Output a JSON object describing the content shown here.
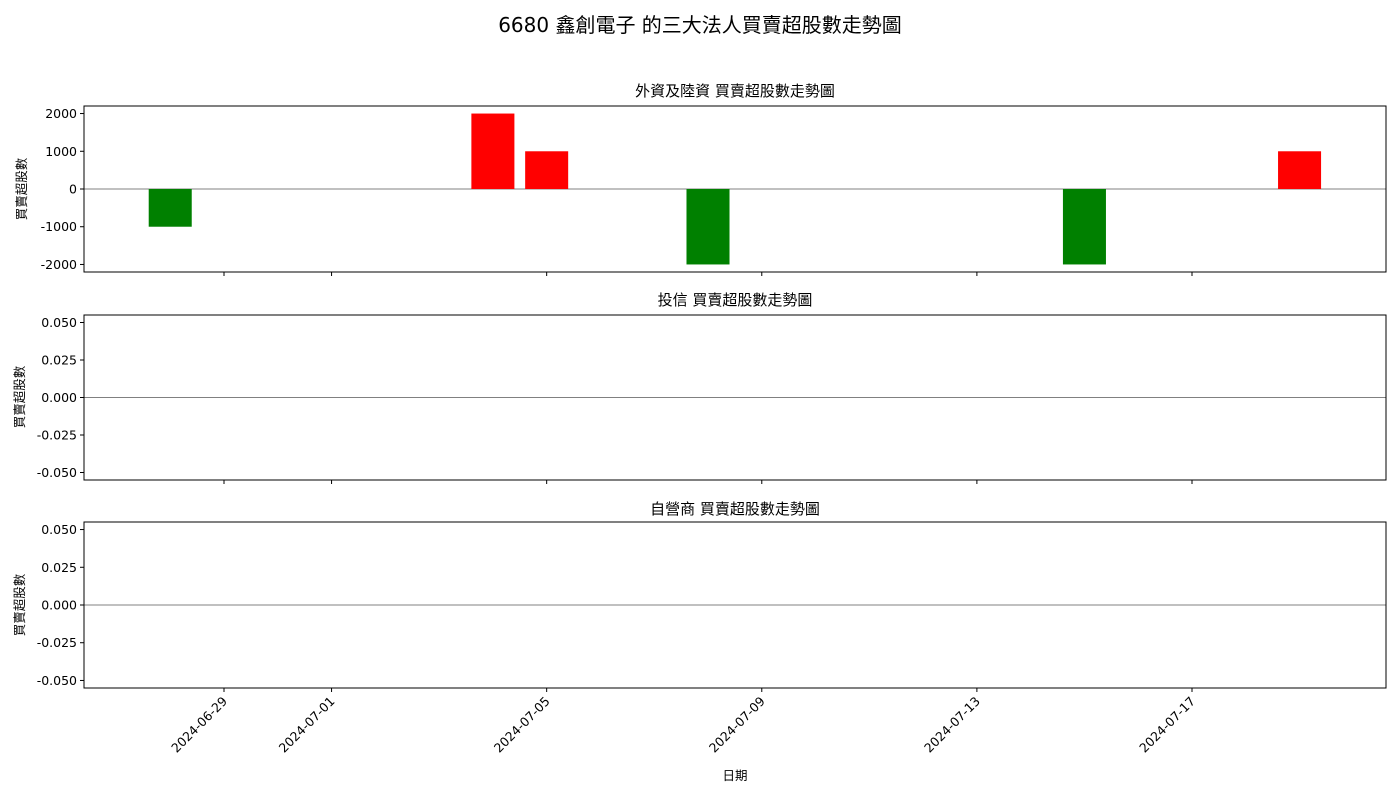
{
  "figure_title": "6680 鑫創電子 的三大法人買賣超股數走勢圖",
  "xlabel": "日期",
  "x_tick_labels": [
    "2024-06-29",
    "2024-07-01",
    "2024-07-05",
    "2024-07-09",
    "2024-07-13",
    "2024-07-17"
  ],
  "colors": {
    "positive": "#ff0000",
    "negative": "#008000",
    "zero_line": "#808080"
  },
  "chart_data": [
    {
      "type": "bar",
      "title": "外資及陸資 買賣超股數走勢圖",
      "ylabel": "買賣超股數",
      "x": [
        "2024-06-28",
        "2024-07-04",
        "2024-07-05",
        "2024-07-08",
        "2024-07-15",
        "2024-07-19"
      ],
      "values": [
        -1000,
        2000,
        1000,
        -2000,
        -2000,
        1000
      ],
      "ylim": [
        -2200,
        2200
      ],
      "y_ticks": [
        2000,
        1000,
        0,
        -1000,
        -2000
      ],
      "y_tick_labels": [
        "2000",
        "1000",
        "0",
        "-1000",
        "-2000"
      ]
    },
    {
      "type": "bar",
      "title": "投信 買賣超股數走勢圖",
      "ylabel": "買賣超股數",
      "x": [],
      "values": [],
      "ylim": [
        -0.055,
        0.055
      ],
      "y_ticks": [
        0.05,
        0.025,
        0,
        -0.025,
        -0.05
      ],
      "y_tick_labels": [
        "0.050",
        "0.025",
        "0.000",
        "-0.025",
        "-0.050"
      ]
    },
    {
      "type": "bar",
      "title": "自營商 買賣超股數走勢圖",
      "ylabel": "買賣超股數",
      "x": [],
      "values": [],
      "ylim": [
        -0.055,
        0.055
      ],
      "y_ticks": [
        0.05,
        0.025,
        0,
        -0.025,
        -0.05
      ],
      "y_tick_labels": [
        "0.050",
        "0.025",
        "0.000",
        "-0.025",
        "-0.050"
      ]
    }
  ]
}
